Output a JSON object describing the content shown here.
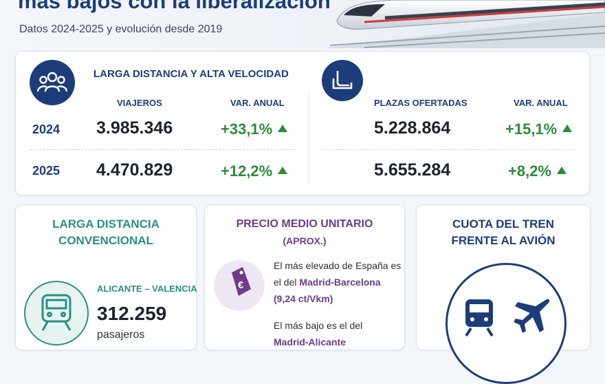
{
  "header": {
    "headline": "más bajos con la liberalización",
    "subtitle": "Datos 2024-2025 y evolución desde 2019"
  },
  "ld_av": {
    "title": "LARGA DISTANCIA Y ALTA VELOCIDAD",
    "col_viajeros": "VIAJEROS",
    "col_var": "VAR. ANUAL",
    "col_plazas": "PLAZAS OFERTADAS",
    "col_var2": "VAR. ANUAL",
    "rows": [
      {
        "year": "2024",
        "viajeros": "3.985.346",
        "var_viajeros": "+33,1%",
        "plazas": "5.228.864",
        "var_plazas": "+15,1%"
      },
      {
        "year": "2025",
        "viajeros": "4.470.829",
        "var_viajeros": "+12,2%",
        "plazas": "5.655.284",
        "var_plazas": "+8,2%"
      }
    ]
  },
  "card_convencional": {
    "title_line1": "LARGA DISTANCIA",
    "title_line2": "CONVENCIONAL",
    "route": "ALICANTE – VALENCIA",
    "number": "312.259",
    "unit": "pasajeros"
  },
  "card_precio": {
    "title": "PRECIO MEDIO UNITARIO",
    "subtitle": "(APROX.)",
    "p1_line1": "El más elevado de España es",
    "p1_line2_pre": "el del ",
    "p1_line2_bold": "Madrid-Barcelona",
    "p1_line3": "(9,24 ct/Vkm)",
    "p2_line1": "El más bajo es el del",
    "p2_line2": "Madrid-Alicante"
  },
  "card_cuota": {
    "title_line1": "CUOTA DEL TREN",
    "title_line2": "FRENTE AL AVIÓN"
  },
  "icons": [
    "people-icon",
    "seat-icon",
    "train-icon",
    "price-tag-icon",
    "train-icon",
    "plane-icon"
  ],
  "colors": {
    "navy": "#1c3d7a",
    "green": "#2e8b3b",
    "teal": "#2a8f83",
    "purple": "#6f3a8a"
  }
}
